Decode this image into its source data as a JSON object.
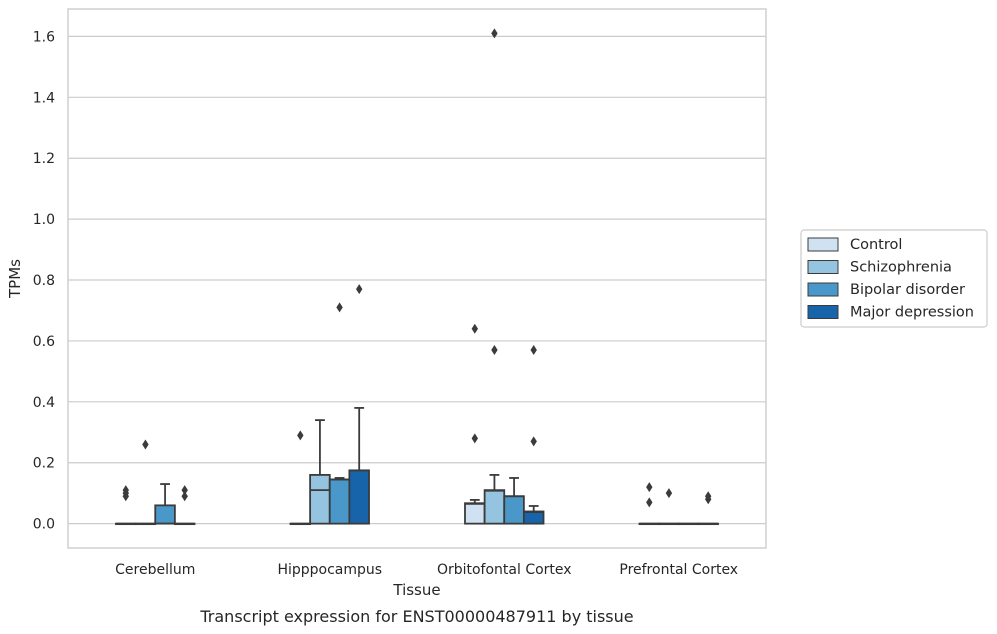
{
  "caption": "Transcript expression for ENST00000487911 by tissue",
  "chart_data": {
    "type": "box",
    "xlabel": "Tissue",
    "ylabel": "TPMs",
    "ylim": [
      -0.08,
      1.69
    ],
    "yticks": [
      0.0,
      0.2,
      0.4,
      0.6,
      0.8,
      1.0,
      1.2,
      1.4,
      1.6
    ],
    "grid": "horizontal",
    "legend_position": "right",
    "categories": [
      "Cerebellum",
      "Hipppocampus",
      "Orbitofontal Cortex",
      "Prefrontal Cortex"
    ],
    "series": [
      {
        "name": "Control",
        "color": "#d0e1f2",
        "boxes": [
          {
            "q1": 0,
            "median": 0,
            "q3": 0,
            "whisker_low": 0,
            "whisker_high": 0,
            "outliers": [
              0.09,
              0.1,
              0.11
            ]
          },
          {
            "q1": 0,
            "median": 0,
            "q3": 0,
            "whisker_low": 0,
            "whisker_high": 0,
            "outliers": [
              0.29
            ]
          },
          {
            "q1": 0,
            "median": 0.065,
            "q3": 0.067,
            "whisker_low": 0,
            "whisker_high": 0.078,
            "outliers": [
              0.28,
              0.64
            ]
          },
          {
            "q1": 0,
            "median": 0,
            "q3": 0,
            "whisker_low": 0,
            "whisker_high": 0,
            "outliers": [
              0.07,
              0.12
            ]
          }
        ]
      },
      {
        "name": "Schizophrenia",
        "color": "#94c4df",
        "boxes": [
          {
            "q1": 0,
            "median": 0,
            "q3": 0,
            "whisker_low": 0,
            "whisker_high": 0,
            "outliers": [
              0.26
            ]
          },
          {
            "q1": 0,
            "median": 0.11,
            "q3": 0.16,
            "whisker_low": 0,
            "whisker_high": 0.34,
            "outliers": []
          },
          {
            "q1": 0,
            "median": 0.108,
            "q3": 0.11,
            "whisker_low": 0,
            "whisker_high": 0.16,
            "outliers": [
              0.57,
              1.61
            ]
          },
          {
            "q1": 0,
            "median": 0,
            "q3": 0,
            "whisker_low": 0,
            "whisker_high": 0,
            "outliers": [
              0.1
            ]
          }
        ]
      },
      {
        "name": "Bipolar disorder",
        "color": "#4a98c9",
        "boxes": [
          {
            "q1": 0,
            "median": 0,
            "q3": 0.06,
            "whisker_low": 0,
            "whisker_high": 0.13,
            "outliers": []
          },
          {
            "q1": 0,
            "median": 0.145,
            "q3": 0.145,
            "whisker_low": 0,
            "whisker_high": 0.15,
            "outliers": [
              0.71
            ]
          },
          {
            "q1": 0,
            "median": 0.09,
            "q3": 0.09,
            "whisker_low": 0,
            "whisker_high": 0.15,
            "outliers": []
          },
          {
            "q1": 0,
            "median": 0,
            "q3": 0,
            "whisker_low": 0,
            "whisker_high": 0,
            "outliers": []
          }
        ]
      },
      {
        "name": "Major depression",
        "color": "#1764ab",
        "boxes": [
          {
            "q1": 0,
            "median": 0,
            "q3": 0,
            "whisker_low": 0,
            "whisker_high": 0,
            "outliers": [
              0.09,
              0.11
            ]
          },
          {
            "q1": 0,
            "median": 0.175,
            "q3": 0.175,
            "whisker_low": 0,
            "whisker_high": 0.38,
            "outliers": [
              0.77
            ]
          },
          {
            "q1": 0,
            "median": 0.038,
            "q3": 0.04,
            "whisker_low": 0,
            "whisker_high": 0.058,
            "outliers": [
              0.27,
              0.57
            ]
          },
          {
            "q1": 0,
            "median": 0,
            "q3": 0,
            "whisker_low": 0,
            "whisker_high": 0,
            "outliers": [
              0.08,
              0.09
            ]
          }
        ]
      }
    ]
  }
}
